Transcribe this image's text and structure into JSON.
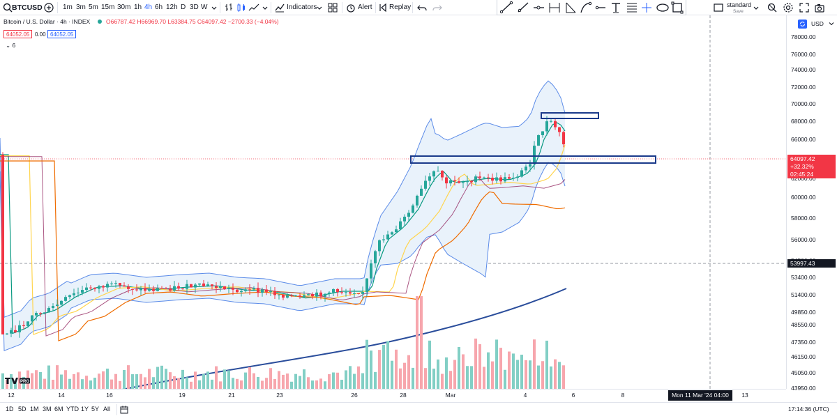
{
  "toolbar": {
    "symbol": "BTCUSD",
    "intervals": [
      "1m",
      "3m",
      "5m",
      "15m",
      "30m",
      "1h",
      "4h",
      "6h",
      "12h",
      "D",
      "3D",
      "W"
    ],
    "active_interval": "4h",
    "indicators_label": "Indicators",
    "alert_label": "Alert",
    "replay_label": "Replay",
    "layout_name": "standard",
    "layout_sub": "Save"
  },
  "legend": {
    "title": "Bitcoin / U.S. Dollar · 4h · INDEX",
    "ohlc": "O66787.42 H66969.70 L63384.75 C64097.42 −2700.33 (−4.04%)",
    "bid": "64052.05",
    "spread": "0.00",
    "ask": "64052.05",
    "collapse": "6"
  },
  "price_axis": {
    "currency": "USD",
    "labels": [
      "78000.00",
      "76000.00",
      "74000.00",
      "72000.00",
      "70000.00",
      "68000.00",
      "66000.00",
      "64000.00",
      "62000.00",
      "60000.00",
      "58000.00",
      "56000.00",
      "54500.00",
      "53400.00",
      "51400.00",
      "49850.00",
      "48550.00",
      "47350.00",
      "46150.00",
      "45050.00",
      "43950.00"
    ],
    "last_price": "64097.42",
    "last_change": "+32.32%",
    "countdown": "02:45:24",
    "crosshair_price": "53997.43"
  },
  "time_axis": {
    "labels": [
      "12",
      "14",
      "16",
      "19",
      "21",
      "23",
      "26",
      "28",
      "Mar",
      "4",
      "6",
      "8",
      "13",
      "15"
    ],
    "crosshair_time": "Mon 11 Mar '24  04:00"
  },
  "bottom_bar": {
    "ranges": [
      "1D",
      "5D",
      "1M",
      "3M",
      "6M",
      "YTD",
      "1Y",
      "5Y",
      "All"
    ],
    "clock": "17:14:36 (UTC)"
  },
  "colors": {
    "up": "#26a69a",
    "down": "#f23645",
    "boll": "#5b8be8",
    "box": "#1a3a8a"
  },
  "logo_text": "TV PRO"
}
